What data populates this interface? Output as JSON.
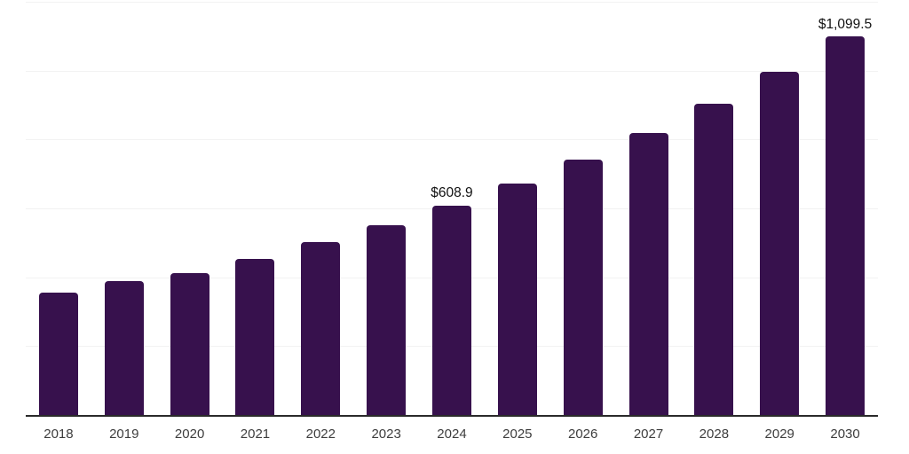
{
  "chart_data": {
    "type": "bar",
    "title": "",
    "xlabel": "",
    "ylabel": "",
    "categories": [
      "2018",
      "2019",
      "2020",
      "2021",
      "2022",
      "2023",
      "2024",
      "2025",
      "2026",
      "2027",
      "2028",
      "2029",
      "2030"
    ],
    "values": [
      354.7,
      388.0,
      411.0,
      453.4,
      503.1,
      552.4,
      608.9,
      671.9,
      741.4,
      818.2,
      902.9,
      996.3,
      1099.5
    ],
    "data_labels": [
      null,
      null,
      null,
      null,
      null,
      null,
      "$608.9",
      null,
      null,
      null,
      null,
      null,
      "$1,099.5"
    ],
    "ylim": [
      0,
      1200
    ],
    "gridline_step": 200,
    "grid": "on",
    "legend_position": "none",
    "colors": {
      "bar": "#37114d",
      "gridline": "#f2f2f2",
      "axis_line": "#2a2a2a",
      "tick_label": "#3d3d3d",
      "data_label": "#111111",
      "background": "#ffffff"
    }
  }
}
